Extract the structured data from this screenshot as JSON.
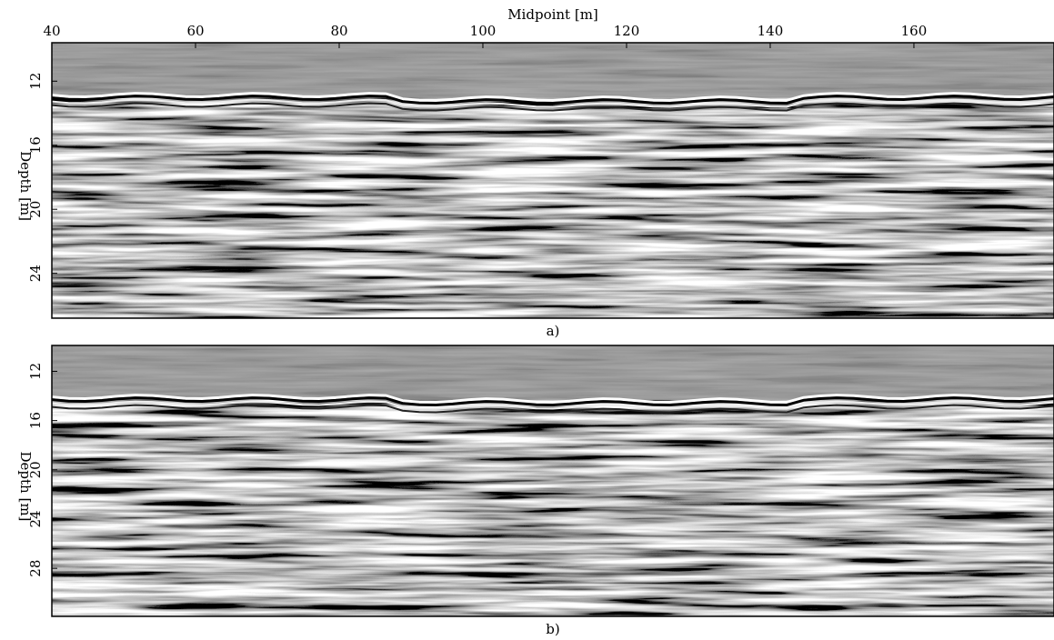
{
  "chart_data": [
    {
      "type": "image",
      "xlabel": "Midpoint [m]",
      "ylabel": "Depth [m]",
      "caption": "a)",
      "xlim": [
        40,
        179.5
      ],
      "xticks": [
        40,
        60,
        80,
        100,
        120,
        140,
        160
      ],
      "ylim": [
        9.6,
        26.8
      ],
      "yticks": [
        12,
        16,
        20,
        24
      ]
    },
    {
      "type": "image",
      "ylabel": "Depth [m]",
      "caption": "b)",
      "xlim": [
        40,
        179.5
      ],
      "ylim": [
        9.9,
        31.9
      ],
      "yticks": [
        12,
        16,
        20,
        24,
        28
      ]
    }
  ]
}
